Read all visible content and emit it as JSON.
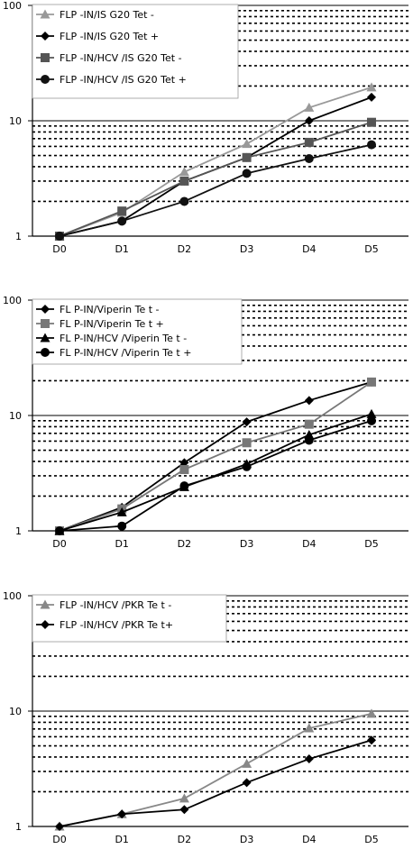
{
  "chart_data": [
    {
      "type": "line",
      "yscale": "log",
      "ylim": [
        1,
        100
      ],
      "yticks": [
        "1",
        "10",
        "100"
      ],
      "categories": [
        "D0",
        "D1",
        "D2",
        "D3",
        "D4",
        "D5"
      ],
      "series": [
        {
          "name": "FLP -IN/IS G20 Tet -",
          "color": "#999999",
          "marker": "triangle",
          "values": [
            1,
            1.6,
            3.6,
            6.3,
            13,
            19.5
          ]
        },
        {
          "name": "FLP -IN/IS G20 Tet +",
          "color": "#000000",
          "marker": "diamond",
          "values": [
            1,
            1.35,
            3.0,
            4.8,
            10,
            16
          ]
        },
        {
          "name": "FLP -IN/HCV /IS G20 Tet -",
          "color": "#555555",
          "marker": "square",
          "values": [
            1,
            1.65,
            3.0,
            4.8,
            6.5,
            9.7
          ]
        },
        {
          "name": "FLP -IN/HCV /IS G20 Tet +",
          "color": "#111111",
          "marker": "circle",
          "values": [
            1,
            1.35,
            2.0,
            3.5,
            4.7,
            6.2
          ]
        }
      ],
      "legend_position": "top-left",
      "grid": "dashed"
    },
    {
      "type": "line",
      "yscale": "log",
      "ylim": [
        1,
        100
      ],
      "yticks": [
        "1",
        "10",
        "100"
      ],
      "categories": [
        "D0",
        "D1",
        "D2",
        "D3",
        "D4",
        "D5"
      ],
      "series": [
        {
          "name": "FL P-IN/Viperin Te t -",
          "color": "#000000",
          "marker": "diamond",
          "values": [
            1,
            1.6,
            3.9,
            8.8,
            13.5,
            19.5
          ]
        },
        {
          "name": "FL P-IN/Viperin Te t +",
          "color": "#777777",
          "marker": "square",
          "values": [
            1,
            1.55,
            3.4,
            5.8,
            8.4,
            19.5
          ]
        },
        {
          "name": "FL P-IN/HCV /Viperin Te t -",
          "color": "#000000",
          "marker": "triangle",
          "values": [
            1,
            1.45,
            2.4,
            3.8,
            6.8,
            10.3
          ]
        },
        {
          "name": "FL P-IN/HCV /Viperin Te t +",
          "color": "#000000",
          "marker": "circle",
          "values": [
            1,
            1.1,
            2.45,
            3.6,
            6.1,
            9.0
          ]
        }
      ],
      "legend_position": "top-left",
      "grid": "dashed"
    },
    {
      "type": "line",
      "yscale": "log",
      "ylim": [
        1,
        100
      ],
      "yticks": [
        "1",
        "10",
        "100"
      ],
      "categories": [
        "D0",
        "D1",
        "D2",
        "D3",
        "D4",
        "D5"
      ],
      "series": [
        {
          "name": "FLP -IN/HCV /PKR  Te t -",
          "color": "#888888",
          "marker": "triangle",
          "values": [
            1,
            1.28,
            1.75,
            3.5,
            7.1,
            9.5
          ]
        },
        {
          "name": "FLP -IN/HCV /PKR  Te t+",
          "color": "#000000",
          "marker": "diamond",
          "values": [
            1,
            1.28,
            1.4,
            2.4,
            3.85,
            5.6
          ]
        }
      ],
      "legend_position": "top-left",
      "grid": "dashed"
    }
  ]
}
